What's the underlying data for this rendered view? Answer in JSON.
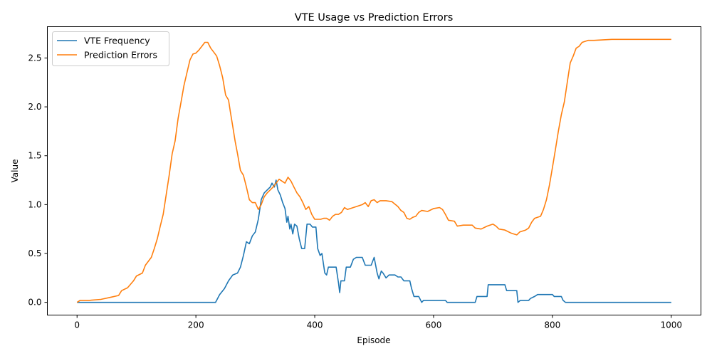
{
  "chart_data": {
    "type": "line",
    "title": "VTE Usage vs Prediction Errors",
    "xlabel": "Episode",
    "ylabel": "Value",
    "xlim": [
      -50,
      1050
    ],
    "ylim": [
      -0.13,
      2.82
    ],
    "xticks": [
      0,
      200,
      400,
      600,
      800,
      1000
    ],
    "xtick_labels": [
      "0",
      "200",
      "400",
      "600",
      "800",
      "1000"
    ],
    "yticks": [
      0.0,
      0.5,
      1.0,
      1.5,
      2.0,
      2.5
    ],
    "ytick_labels": [
      "0.0",
      "0.5",
      "1.0",
      "1.5",
      "2.0",
      "2.5"
    ],
    "grid": false,
    "legend_position": "top-left",
    "series": [
      {
        "name": "VTE Frequency",
        "color": "#1f77b4",
        "points": [
          [
            0,
            0
          ],
          [
            100,
            0
          ],
          [
            200,
            0
          ],
          [
            233,
            0
          ],
          [
            240,
            0.08
          ],
          [
            248,
            0.14
          ],
          [
            255,
            0.22
          ],
          [
            262,
            0.28
          ],
          [
            270,
            0.3
          ],
          [
            275,
            0.36
          ],
          [
            280,
            0.48
          ],
          [
            285,
            0.62
          ],
          [
            290,
            0.6
          ],
          [
            295,
            0.68
          ],
          [
            300,
            0.72
          ],
          [
            305,
            0.85
          ],
          [
            310,
            1.05
          ],
          [
            315,
            1.12
          ],
          [
            320,
            1.15
          ],
          [
            325,
            1.18
          ],
          [
            328,
            1.22
          ],
          [
            332,
            1.18
          ],
          [
            335,
            1.25
          ],
          [
            338,
            1.15
          ],
          [
            342,
            1.1
          ],
          [
            346,
            1.02
          ],
          [
            350,
            0.96
          ],
          [
            353,
            0.82
          ],
          [
            355,
            0.88
          ],
          [
            358,
            0.75
          ],
          [
            360,
            0.8
          ],
          [
            363,
            0.7
          ],
          [
            366,
            0.8
          ],
          [
            370,
            0.78
          ],
          [
            374,
            0.65
          ],
          [
            378,
            0.55
          ],
          [
            383,
            0.55
          ],
          [
            387,
            0.8
          ],
          [
            392,
            0.8
          ],
          [
            396,
            0.77
          ],
          [
            402,
            0.77
          ],
          [
            405,
            0.55
          ],
          [
            409,
            0.48
          ],
          [
            412,
            0.5
          ],
          [
            417,
            0.3
          ],
          [
            420,
            0.28
          ],
          [
            423,
            0.36
          ],
          [
            430,
            0.36
          ],
          [
            436,
            0.36
          ],
          [
            440,
            0.2
          ],
          [
            442,
            0.1
          ],
          [
            444,
            0.22
          ],
          [
            450,
            0.22
          ],
          [
            453,
            0.36
          ],
          [
            460,
            0.36
          ],
          [
            465,
            0.44
          ],
          [
            470,
            0.46
          ],
          [
            480,
            0.46
          ],
          [
            485,
            0.38
          ],
          [
            495,
            0.38
          ],
          [
            500,
            0.46
          ],
          [
            505,
            0.3
          ],
          [
            508,
            0.24
          ],
          [
            512,
            0.32
          ],
          [
            515,
            0.3
          ],
          [
            520,
            0.25
          ],
          [
            525,
            0.28
          ],
          [
            535,
            0.28
          ],
          [
            540,
            0.26
          ],
          [
            545,
            0.26
          ],
          [
            550,
            0.22
          ],
          [
            560,
            0.22
          ],
          [
            563,
            0.14
          ],
          [
            567,
            0.06
          ],
          [
            575,
            0.06
          ],
          [
            580,
            0.0
          ],
          [
            583,
            0.02
          ],
          [
            590,
            0.02
          ],
          [
            620,
            0.02
          ],
          [
            623,
            0.0
          ],
          [
            670,
            0.0
          ],
          [
            673,
            0.06
          ],
          [
            690,
            0.06
          ],
          [
            692,
            0.18
          ],
          [
            720,
            0.18
          ],
          [
            723,
            0.12
          ],
          [
            740,
            0.12
          ],
          [
            742,
            0.0
          ],
          [
            746,
            0.02
          ],
          [
            760,
            0.02
          ],
          [
            763,
            0.04
          ],
          [
            770,
            0.06
          ],
          [
            775,
            0.08
          ],
          [
            800,
            0.08
          ],
          [
            803,
            0.06
          ],
          [
            815,
            0.06
          ],
          [
            818,
            0.02
          ],
          [
            822,
            0.0
          ],
          [
            900,
            0.0
          ],
          [
            1000,
            0.0
          ]
        ]
      },
      {
        "name": "Prediction Errors",
        "color": "#ff7f0e",
        "points": [
          [
            0,
            0
          ],
          [
            5,
            0.02
          ],
          [
            20,
            0.02
          ],
          [
            40,
            0.03
          ],
          [
            55,
            0.05
          ],
          [
            70,
            0.07
          ],
          [
            75,
            0.12
          ],
          [
            85,
            0.15
          ],
          [
            95,
            0.22
          ],
          [
            100,
            0.27
          ],
          [
            110,
            0.3
          ],
          [
            115,
            0.38
          ],
          [
            125,
            0.46
          ],
          [
            130,
            0.55
          ],
          [
            135,
            0.65
          ],
          [
            140,
            0.78
          ],
          [
            145,
            0.9
          ],
          [
            150,
            1.1
          ],
          [
            155,
            1.3
          ],
          [
            160,
            1.52
          ],
          [
            165,
            1.65
          ],
          [
            170,
            1.88
          ],
          [
            175,
            2.05
          ],
          [
            180,
            2.22
          ],
          [
            185,
            2.35
          ],
          [
            190,
            2.48
          ],
          [
            195,
            2.54
          ],
          [
            200,
            2.55
          ],
          [
            205,
            2.58
          ],
          [
            210,
            2.62
          ],
          [
            215,
            2.66
          ],
          [
            220,
            2.66
          ],
          [
            225,
            2.6
          ],
          [
            230,
            2.56
          ],
          [
            235,
            2.52
          ],
          [
            240,
            2.42
          ],
          [
            245,
            2.3
          ],
          [
            250,
            2.12
          ],
          [
            255,
            2.07
          ],
          [
            258,
            1.95
          ],
          [
            262,
            1.8
          ],
          [
            266,
            1.65
          ],
          [
            270,
            1.52
          ],
          [
            275,
            1.35
          ],
          [
            280,
            1.3
          ],
          [
            285,
            1.18
          ],
          [
            290,
            1.05
          ],
          [
            295,
            1.02
          ],
          [
            300,
            1.02
          ],
          [
            305,
            0.95
          ],
          [
            310,
            1.0
          ],
          [
            315,
            1.08
          ],
          [
            320,
            1.12
          ],
          [
            325,
            1.15
          ],
          [
            330,
            1.18
          ],
          [
            335,
            1.22
          ],
          [
            340,
            1.26
          ],
          [
            345,
            1.24
          ],
          [
            350,
            1.22
          ],
          [
            355,
            1.28
          ],
          [
            360,
            1.24
          ],
          [
            365,
            1.18
          ],
          [
            370,
            1.12
          ],
          [
            375,
            1.08
          ],
          [
            380,
            1.02
          ],
          [
            385,
            0.95
          ],
          [
            390,
            0.98
          ],
          [
            395,
            0.9
          ],
          [
            400,
            0.85
          ],
          [
            410,
            0.85
          ],
          [
            415,
            0.86
          ],
          [
            420,
            0.86
          ],
          [
            425,
            0.84
          ],
          [
            430,
            0.88
          ],
          [
            435,
            0.9
          ],
          [
            440,
            0.9
          ],
          [
            445,
            0.92
          ],
          [
            450,
            0.97
          ],
          [
            455,
            0.95
          ],
          [
            460,
            0.96
          ],
          [
            470,
            0.98
          ],
          [
            480,
            1.0
          ],
          [
            485,
            1.02
          ],
          [
            490,
            0.98
          ],
          [
            495,
            1.04
          ],
          [
            500,
            1.05
          ],
          [
            505,
            1.02
          ],
          [
            510,
            1.04
          ],
          [
            520,
            1.04
          ],
          [
            530,
            1.03
          ],
          [
            540,
            0.98
          ],
          [
            545,
            0.94
          ],
          [
            550,
            0.92
          ],
          [
            555,
            0.86
          ],
          [
            560,
            0.85
          ],
          [
            565,
            0.87
          ],
          [
            570,
            0.88
          ],
          [
            575,
            0.92
          ],
          [
            580,
            0.94
          ],
          [
            590,
            0.93
          ],
          [
            600,
            0.96
          ],
          [
            610,
            0.97
          ],
          [
            615,
            0.95
          ],
          [
            620,
            0.9
          ],
          [
            625,
            0.84
          ],
          [
            635,
            0.83
          ],
          [
            640,
            0.78
          ],
          [
            650,
            0.79
          ],
          [
            660,
            0.79
          ],
          [
            665,
            0.79
          ],
          [
            670,
            0.76
          ],
          [
            680,
            0.75
          ],
          [
            690,
            0.78
          ],
          [
            700,
            0.8
          ],
          [
            705,
            0.78
          ],
          [
            710,
            0.75
          ],
          [
            720,
            0.74
          ],
          [
            730,
            0.71
          ],
          [
            735,
            0.7
          ],
          [
            740,
            0.69
          ],
          [
            745,
            0.72
          ],
          [
            755,
            0.74
          ],
          [
            760,
            0.76
          ],
          [
            765,
            0.82
          ],
          [
            770,
            0.86
          ],
          [
            780,
            0.88
          ],
          [
            785,
            0.95
          ],
          [
            790,
            1.05
          ],
          [
            795,
            1.2
          ],
          [
            800,
            1.38
          ],
          [
            805,
            1.56
          ],
          [
            810,
            1.75
          ],
          [
            815,
            1.92
          ],
          [
            820,
            2.05
          ],
          [
            825,
            2.25
          ],
          [
            830,
            2.45
          ],
          [
            835,
            2.52
          ],
          [
            840,
            2.6
          ],
          [
            845,
            2.62
          ],
          [
            850,
            2.66
          ],
          [
            860,
            2.68
          ],
          [
            870,
            2.68
          ],
          [
            900,
            2.69
          ],
          [
            950,
            2.69
          ],
          [
            1000,
            2.69
          ]
        ]
      }
    ]
  }
}
